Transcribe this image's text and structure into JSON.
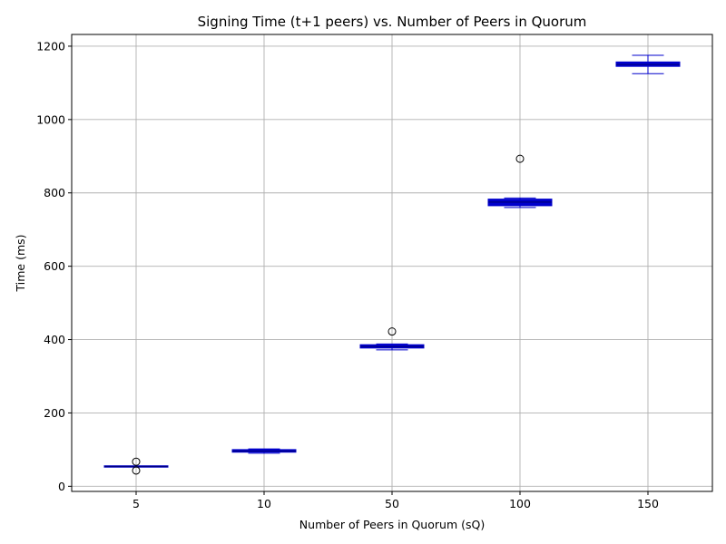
{
  "chart_data": {
    "type": "box",
    "title": "Signing Time (t+1 peers) vs. Number of Peers in Quorum",
    "xlabel": "Number of Peers in Quorum (sQ)",
    "ylabel": "Time (ms)",
    "ylim": [
      -14,
      1232
    ],
    "yticks": [
      0,
      200,
      400,
      600,
      800,
      1000,
      1200
    ],
    "grid": true,
    "box_color": "#0000cc",
    "median_color": "#000080",
    "flier_color": "#000000",
    "categories": [
      "5",
      "10",
      "50",
      "100",
      "150"
    ],
    "boxes": [
      {
        "category": "5",
        "whisker_low": 53,
        "q1": 53,
        "median": 54,
        "q3": 55,
        "whisker_high": 55,
        "fliers": [
          67,
          43
        ]
      },
      {
        "category": "10",
        "whisker_low": 90,
        "q1": 93,
        "median": 96,
        "q3": 100,
        "whisker_high": 102,
        "fliers": []
      },
      {
        "category": "50",
        "whisker_low": 372,
        "q1": 377,
        "median": 381,
        "q3": 386,
        "whisker_high": 388,
        "fliers": [
          422
        ]
      },
      {
        "category": "100",
        "whisker_low": 760,
        "q1": 765,
        "median": 775,
        "q3": 783,
        "whisker_high": 786,
        "fliers": [
          893
        ]
      },
      {
        "category": "150",
        "whisker_low": 1125,
        "q1": 1145,
        "median": 1150,
        "q3": 1157,
        "whisker_high": 1175,
        "fliers": []
      }
    ]
  }
}
